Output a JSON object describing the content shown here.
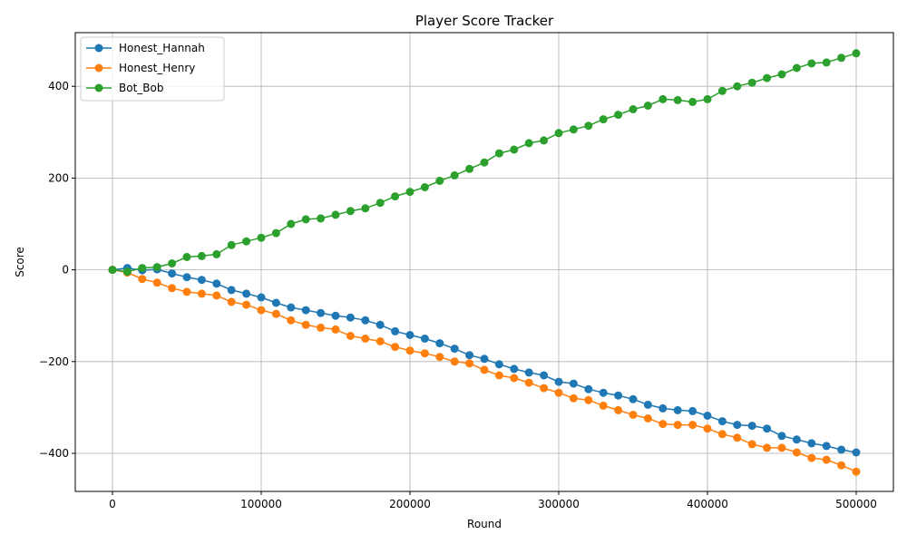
{
  "chart_data": {
    "type": "line",
    "title": "Player Score Tracker",
    "xlabel": "Round",
    "ylabel": "Score",
    "xlim": [
      -25000,
      525000
    ],
    "ylim": [
      -483,
      517
    ],
    "x_ticks": [
      0,
      100000,
      200000,
      300000,
      400000,
      500000
    ],
    "y_ticks": [
      -400,
      -200,
      0,
      200,
      400
    ],
    "grid": true,
    "legend_position": "top-left",
    "marker": "circle",
    "x": [
      0,
      10000,
      20000,
      30000,
      40000,
      50000,
      60000,
      70000,
      80000,
      90000,
      100000,
      110000,
      120000,
      130000,
      140000,
      150000,
      160000,
      170000,
      180000,
      190000,
      200000,
      210000,
      220000,
      230000,
      240000,
      250000,
      260000,
      270000,
      280000,
      290000,
      300000,
      310000,
      320000,
      330000,
      340000,
      350000,
      360000,
      370000,
      380000,
      390000,
      400000,
      410000,
      420000,
      430000,
      440000,
      450000,
      460000,
      470000,
      480000,
      490000,
      500000
    ],
    "series": [
      {
        "name": "Honest_Hannah",
        "color": "#1f77b4",
        "values": [
          0,
          4,
          -1,
          1,
          -8,
          -16,
          -22,
          -30,
          -44,
          -52,
          -60,
          -72,
          -82,
          -88,
          -94,
          -100,
          -104,
          -110,
          -120,
          -134,
          -142,
          -150,
          -160,
          -172,
          -186,
          -194,
          -206,
          -216,
          -224,
          -230,
          -244,
          -248,
          -260,
          -268,
          -274,
          -282,
          -294,
          -302,
          -306,
          -308,
          -318,
          -330,
          -338,
          -340,
          -346,
          -362,
          -370,
          -378,
          -384,
          -392,
          -398
        ]
      },
      {
        "name": "Honest_Henry",
        "color": "#ff7f0e",
        "values": [
          0,
          -6,
          -20,
          -28,
          -40,
          -48,
          -52,
          -56,
          -70,
          -76,
          -88,
          -96,
          -110,
          -120,
          -126,
          -130,
          -144,
          -150,
          -156,
          -168,
          -176,
          -182,
          -190,
          -200,
          -204,
          -218,
          -230,
          -236,
          -246,
          -258,
          -268,
          -280,
          -284,
          -296,
          -306,
          -316,
          -324,
          -336,
          -338,
          -338,
          -346,
          -358,
          -366,
          -380,
          -388,
          -388,
          -398,
          -410,
          -414,
          -426,
          -440
        ]
      },
      {
        "name": "Bot_Bob",
        "color": "#2ca02c",
        "values": [
          0,
          -4,
          4,
          6,
          14,
          28,
          30,
          34,
          54,
          62,
          70,
          80,
          100,
          110,
          112,
          120,
          128,
          134,
          146,
          160,
          170,
          180,
          194,
          206,
          220,
          234,
          254,
          262,
          276,
          282,
          298,
          306,
          314,
          328,
          338,
          350,
          358,
          372,
          370,
          366,
          372,
          390,
          400,
          408,
          418,
          426,
          440,
          450,
          452,
          462,
          472
        ]
      }
    ]
  }
}
